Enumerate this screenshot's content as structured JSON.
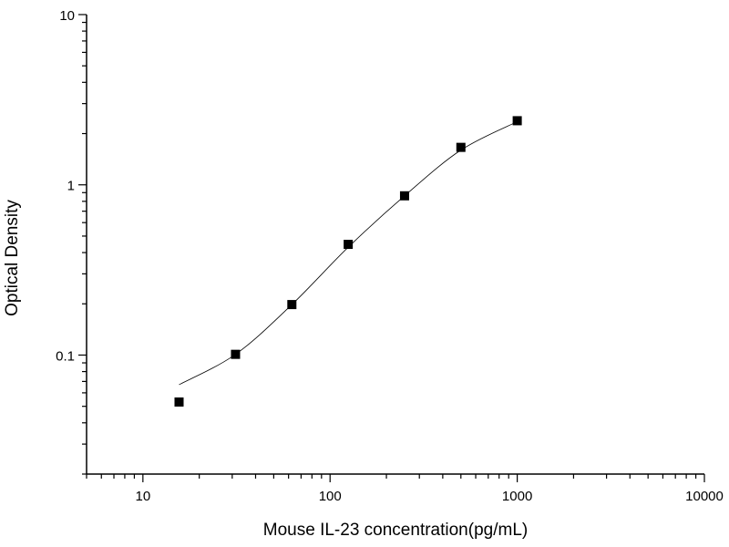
{
  "chart_data": {
    "type": "scatter",
    "title": "",
    "xlabel": "Mouse IL-23 concentration(pg/mL)",
    "ylabel": "Optical Density",
    "x_scale": "log",
    "y_scale": "log",
    "xlim": [
      5,
      10000
    ],
    "ylim": [
      0.02,
      10
    ],
    "x_ticks": [
      10,
      100,
      1000,
      10000
    ],
    "x_tick_labels": [
      "10",
      "100",
      "1000",
      "10000"
    ],
    "y_ticks": [
      0.1,
      1,
      10
    ],
    "y_tick_labels": [
      "0.1",
      "1",
      "10"
    ],
    "grid": false,
    "legend": "none",
    "series": [
      {
        "marker": "square",
        "color": "#000000",
        "x": [
          15.6,
          31.25,
          62.5,
          125,
          250,
          500,
          1000
        ],
        "y": [
          0.053,
          0.101,
          0.198,
          0.447,
          0.862,
          1.66,
          2.38
        ]
      }
    ],
    "fit_curve": {
      "color": "#000000",
      "x": [
        15.6,
        31.25,
        62.5,
        125,
        250,
        500,
        1000
      ],
      "y": [
        0.067,
        0.101,
        0.198,
        0.43,
        0.862,
        1.6,
        2.35
      ]
    }
  }
}
